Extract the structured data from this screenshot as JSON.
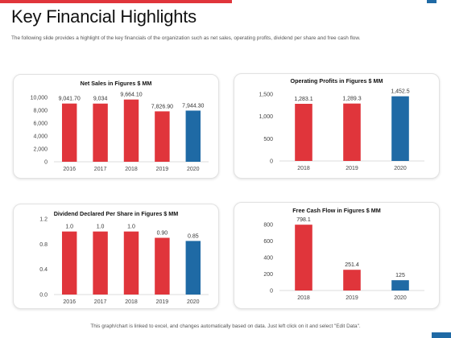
{
  "page": {
    "title": "Key Financial Highlights",
    "subtitle": "The following slide provides a highlight of the key financials of the organization such as net sales, operating profits, dividend per share and free cash flow.",
    "footer": "This graph/chart is linked to excel, and changes automatically based on data. Just left click on it and select \"Edit Data\"."
  },
  "colors": {
    "accent_red": "#e0353b",
    "accent_blue": "#1f6aa5",
    "axis_text": "#444444"
  },
  "chart_data": [
    {
      "type": "bar",
      "title": "Net Sales in Figures $ MM",
      "categories": [
        "2016",
        "2017",
        "2018",
        "2019",
        "2020"
      ],
      "values": [
        9041.7,
        9034,
        9664.1,
        7826.9,
        7944.3
      ],
      "value_labels": [
        "9,041.70",
        "9,034",
        "9,664.10",
        "7,826.90",
        "7,944.30"
      ],
      "yticks": [
        0,
        2000,
        4000,
        6000,
        8000,
        10000
      ],
      "ytick_labels": [
        "0",
        "2,000",
        "4,000",
        "6,000",
        "8,000",
        "10,000"
      ],
      "ylim": [
        0,
        10000
      ],
      "bar_colors": [
        "#e0353b",
        "#e0353b",
        "#e0353b",
        "#e0353b",
        "#1f6aa5"
      ],
      "grid": false,
      "legend": "none"
    },
    {
      "type": "bar",
      "title": "Operating Profits in Figures $ MM",
      "categories": [
        "2018",
        "2019",
        "2020"
      ],
      "values": [
        1283.1,
        1289.3,
        1452.5
      ],
      "value_labels": [
        "1,283.1",
        "1,289.3",
        "1,452.5"
      ],
      "yticks": [
        0,
        500,
        1000,
        1500
      ],
      "ytick_labels": [
        "0",
        "500",
        "1,000",
        "1,500"
      ],
      "ylim": [
        0,
        1500
      ],
      "bar_colors": [
        "#e0353b",
        "#e0353b",
        "#1f6aa5"
      ],
      "grid": false,
      "legend": "none"
    },
    {
      "type": "bar",
      "title": "Dividend Declared Per Share in Figures $ MM",
      "categories": [
        "2016",
        "2017",
        "2018",
        "2019",
        "2020"
      ],
      "values": [
        1.0,
        1.0,
        1.0,
        0.9,
        0.85
      ],
      "value_labels": [
        "1.0",
        "1.0",
        "1.0",
        "0.90",
        "0.85"
      ],
      "yticks": [
        0,
        0.4,
        0.8,
        1.2
      ],
      "ytick_labels": [
        "0.0",
        "0.4",
        "0.8",
        "1.2"
      ],
      "ylim": [
        0,
        1.2
      ],
      "bar_colors": [
        "#e0353b",
        "#e0353b",
        "#e0353b",
        "#e0353b",
        "#1f6aa5"
      ],
      "grid": false,
      "legend": "none"
    },
    {
      "type": "bar",
      "title": "Free Cash Flow in Figures $ MM",
      "categories": [
        "2018",
        "2019",
        "2020"
      ],
      "values": [
        798.1,
        251.4,
        125
      ],
      "value_labels": [
        "798.1",
        "251.4",
        "125"
      ],
      "yticks": [
        0,
        200,
        400,
        600,
        800
      ],
      "ytick_labels": [
        "0",
        "200",
        "400",
        "600",
        "800"
      ],
      "ylim": [
        0,
        800
      ],
      "bar_colors": [
        "#e0353b",
        "#e0353b",
        "#1f6aa5"
      ],
      "grid": false,
      "legend": "none"
    }
  ]
}
